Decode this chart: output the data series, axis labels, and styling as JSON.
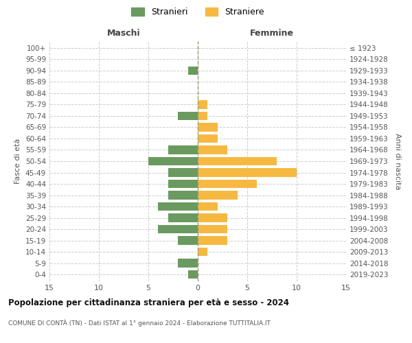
{
  "age_groups": [
    "0-4",
    "5-9",
    "10-14",
    "15-19",
    "20-24",
    "25-29",
    "30-34",
    "35-39",
    "40-44",
    "45-49",
    "50-54",
    "55-59",
    "60-64",
    "65-69",
    "70-74",
    "75-79",
    "80-84",
    "85-89",
    "90-94",
    "95-99",
    "100+"
  ],
  "birth_years": [
    "2019-2023",
    "2014-2018",
    "2009-2013",
    "2004-2008",
    "1999-2003",
    "1994-1998",
    "1989-1993",
    "1984-1988",
    "1979-1983",
    "1974-1978",
    "1969-1973",
    "1964-1968",
    "1959-1963",
    "1954-1958",
    "1949-1953",
    "1944-1948",
    "1939-1943",
    "1934-1938",
    "1929-1933",
    "1924-1928",
    "≤ 1923"
  ],
  "males": [
    1,
    2,
    0,
    2,
    4,
    3,
    4,
    3,
    3,
    3,
    5,
    3,
    0,
    0,
    2,
    0,
    0,
    0,
    1,
    0,
    0
  ],
  "females": [
    0,
    0,
    1,
    3,
    3,
    3,
    2,
    4,
    6,
    10,
    8,
    3,
    2,
    2,
    1,
    1,
    0,
    0,
    0,
    0,
    0
  ],
  "male_color": "#6a9a5f",
  "female_color": "#f5b942",
  "grid_color": "#cccccc",
  "background_color": "#ffffff",
  "title": "Popolazione per cittadinanza straniera per età e sesso - 2024",
  "subtitle": "COMUNE DI CONTÀ (TN) - Dati ISTAT al 1° gennaio 2024 - Elaborazione TUTTITALIA.IT",
  "xlabel_left": "Maschi",
  "xlabel_right": "Femmine",
  "ylabel_left": "Fasce di età",
  "ylabel_right": "Anni di nascita",
  "legend_male": "Stranieri",
  "legend_female": "Straniere",
  "xlim": 15,
  "xtick_labels": [
    "15",
    "10",
    "5",
    "0",
    "5",
    "10",
    "15"
  ]
}
